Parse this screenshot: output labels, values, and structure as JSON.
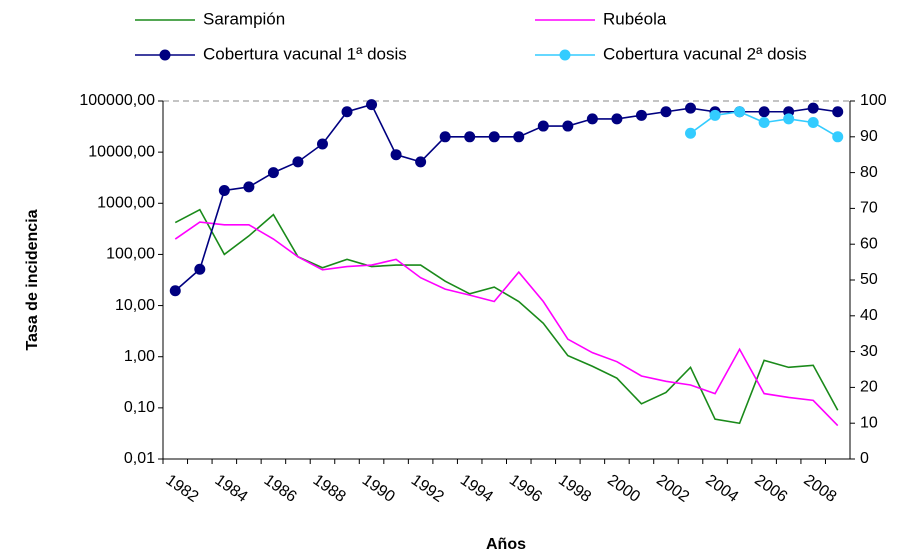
{
  "chart_data": {
    "type": "line",
    "y_label": "Tasa de incidencia",
    "x_label": "Años",
    "categories": [
      null,
      "1982",
      null,
      "1984",
      null,
      "1986",
      null,
      "1988",
      null,
      "1990",
      null,
      "1992",
      null,
      "1994",
      null,
      "1996",
      null,
      "1998",
      null,
      "2000",
      null,
      "2002",
      null,
      "2004",
      null,
      "2006",
      null,
      "2008"
    ],
    "y_log": true,
    "ylim": [
      0.01,
      100000
    ],
    "yticks": [
      {
        "value": 0.01,
        "label": "0,01"
      },
      {
        "value": 0.1,
        "label": "0,10"
      },
      {
        "value": 1,
        "label": "1,00"
      },
      {
        "value": 10,
        "label": "10,00"
      },
      {
        "value": 100,
        "label": "100,00"
      },
      {
        "value": 1000,
        "label": "1000,00"
      },
      {
        "value": 10000,
        "label": "10000,00"
      },
      {
        "value": 100000,
        "label": "100000,00"
      }
    ],
    "y2lim": [
      0,
      100
    ],
    "y2ticks": [
      0,
      10,
      20,
      30,
      40,
      50,
      60,
      70,
      80,
      90,
      100
    ],
    "series": [
      {
        "name": "Sarampión",
        "color": "#1a8a1a",
        "marker": false,
        "values": [
          420,
          750,
          100,
          230,
          600,
          90,
          55,
          80,
          58,
          62,
          62,
          30,
          17,
          23,
          12,
          4.5,
          1.05,
          0.65,
          0.38,
          0.12,
          0.2,
          0.62,
          0.06,
          0.05,
          0.85,
          0.62,
          0.68,
          0.09
        ]
      },
      {
        "name": "Rubéola",
        "color": "#ff00ff",
        "marker": false,
        "values": [
          200,
          430,
          380,
          380,
          200,
          90,
          50,
          58,
          62,
          80,
          35,
          21,
          16,
          12,
          45,
          12,
          2.2,
          1.2,
          0.8,
          0.42,
          0.33,
          0.28,
          0.19,
          1.4,
          0.19,
          0.16,
          0.14,
          0.045
        ]
      },
      {
        "name": "Cobertura vacunal 1ª dosis",
        "color": "#000080",
        "marker": true,
        "axis": "y2",
        "values": [
          47,
          53,
          75,
          76,
          80,
          83,
          88,
          97,
          99,
          85,
          83,
          90,
          90,
          90,
          90,
          93,
          93,
          95,
          95,
          96,
          97,
          98,
          97,
          97,
          97,
          97,
          98,
          97
        ]
      },
      {
        "name": "Cobertura vacunal 2ª dosis",
        "color": "#33ccff",
        "marker": true,
        "axis": "y2",
        "values": [
          null,
          null,
          null,
          null,
          null,
          null,
          null,
          null,
          null,
          null,
          null,
          null,
          null,
          null,
          null,
          null,
          null,
          null,
          null,
          null,
          null,
          91,
          96,
          97,
          94,
          95,
          94,
          90
        ]
      }
    ]
  }
}
